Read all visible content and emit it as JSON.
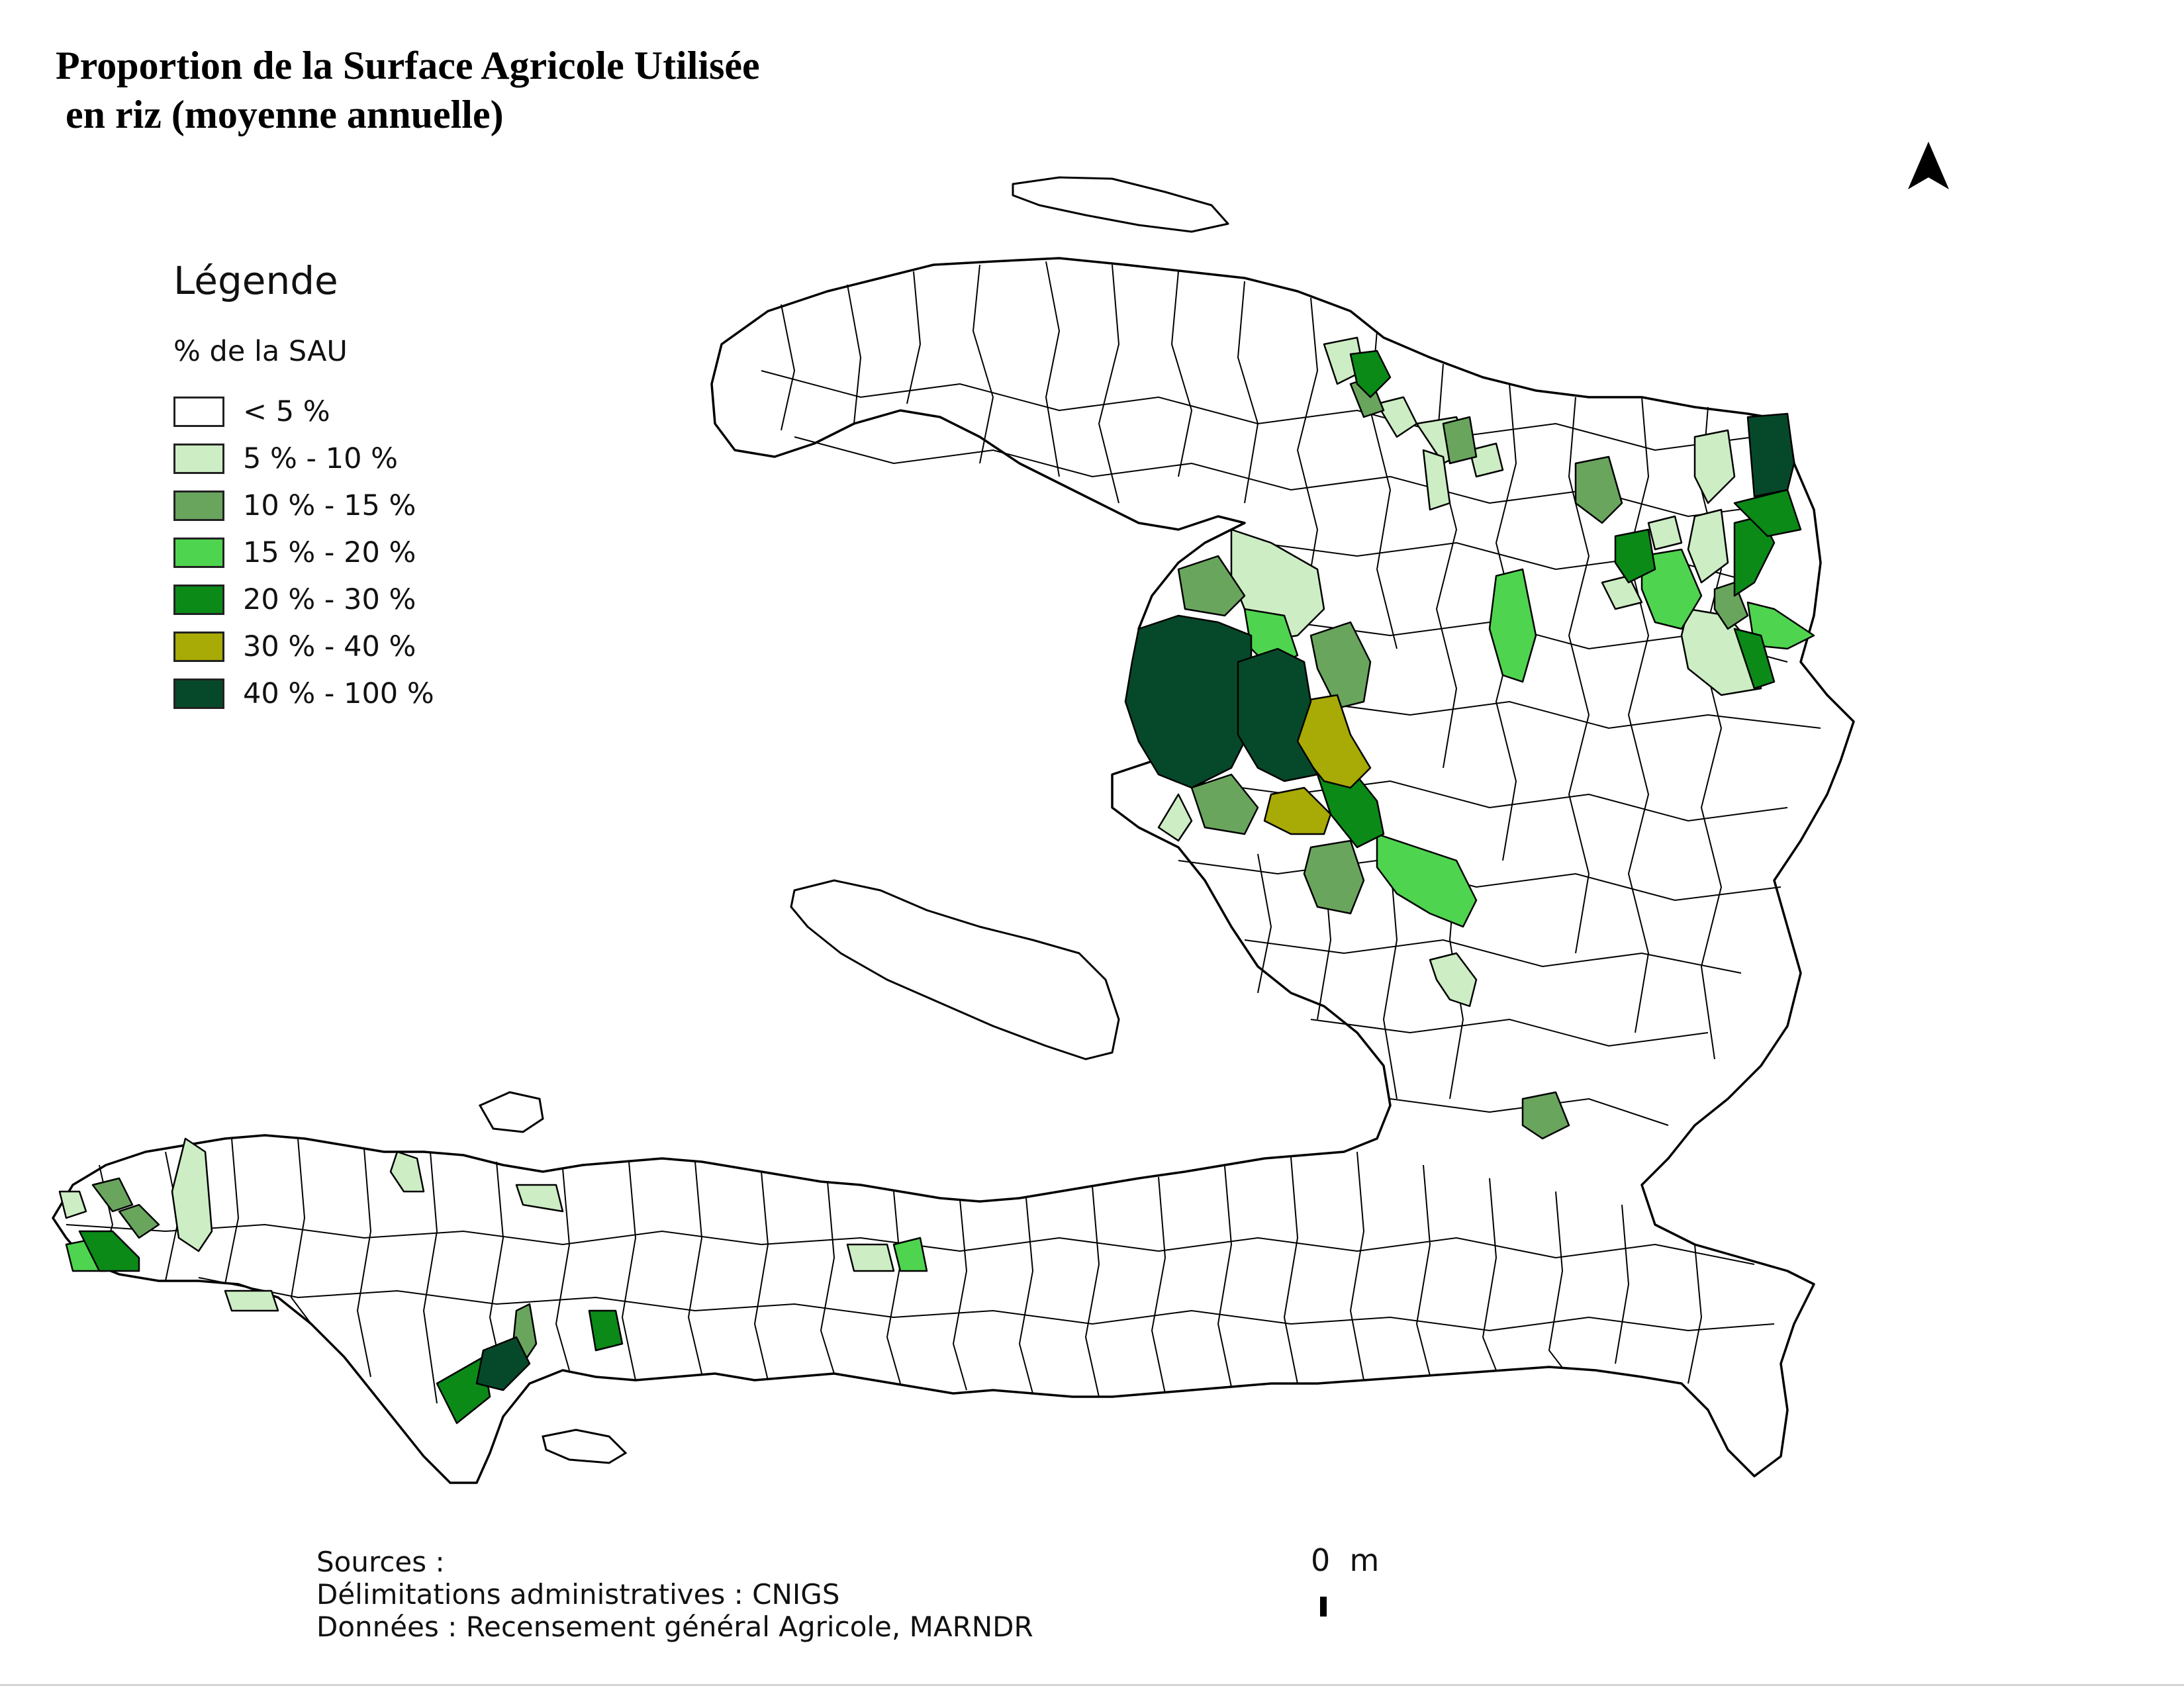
{
  "title": "Proportion de la Surface Agricole Utilisée\n en riz (moyenne annuelle)",
  "north_arrow": {
    "icon": "north-arrow-icon"
  },
  "legend": {
    "title": "Légende",
    "subtitle": "% de la SAU",
    "classes": [
      {
        "label": "< 5 %",
        "color": "#ffffff"
      },
      {
        "label": "5 % - 10 %",
        "color": "#cdedc4"
      },
      {
        "label": "10 % - 15 %",
        "color": "#6aa55e"
      },
      {
        "label": "15 % - 20 %",
        "color": "#4fd44f"
      },
      {
        "label": "20 % - 30 %",
        "color": "#0b8a18"
      },
      {
        "label": "30 % - 40 %",
        "color": "#a8aa05"
      },
      {
        "label": "40 % - 100 %",
        "color": "#06492a"
      }
    ]
  },
  "sources": {
    "heading": "Sources :",
    "line1": "Délimitations administratives : CNIGS",
    "line2": "Données : Recensement général Agricole, MARNDR"
  },
  "scale_bar": {
    "label": "0  m"
  }
}
